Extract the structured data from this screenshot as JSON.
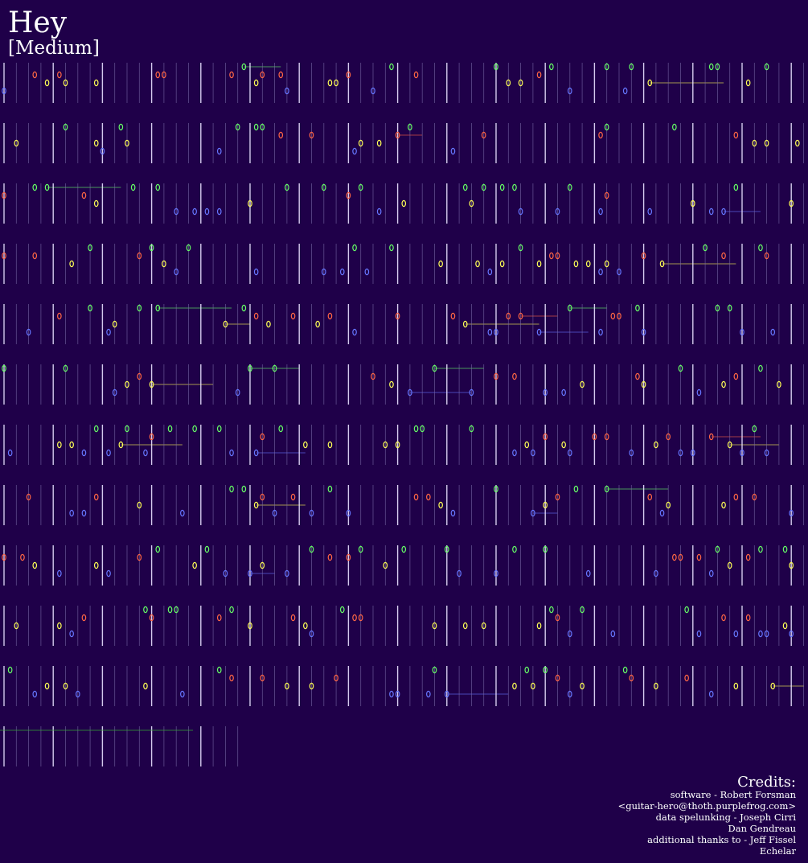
{
  "header": {
    "title": "Hey",
    "difficulty": "[Medium]"
  },
  "credits": {
    "heading": "Credits:",
    "lines": [
      "software - Robert Forsman",
      "<guitar-hero@thoth.purplefrog.com>",
      "data spelunking - Joseph Cirri",
      "Dan Gendreau",
      "additional thanks to - Jeff Fissel",
      "Echelar"
    ]
  }
}
